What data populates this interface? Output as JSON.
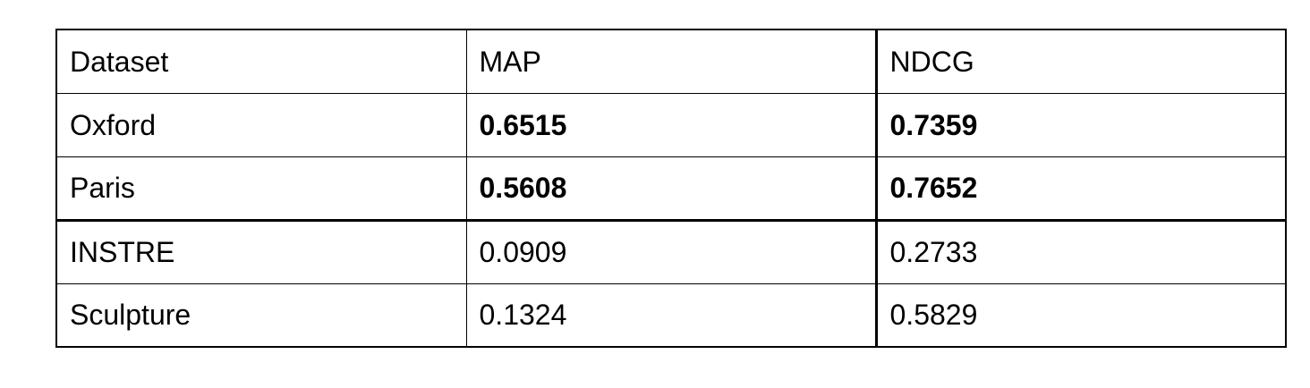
{
  "table": {
    "headers": [
      "Dataset",
      "MAP",
      "NDCG"
    ],
    "rows": [
      {
        "dataset": "Oxford",
        "map": "0.6515",
        "ndcg": "0.7359",
        "bold": true
      },
      {
        "dataset": "Paris",
        "map": "0.5608",
        "ndcg": "0.7652",
        "bold": true
      },
      {
        "dataset": "INSTRE",
        "map": "0.0909",
        "ndcg": "0.2733",
        "bold": false
      },
      {
        "dataset": "Sculpture",
        "map": "0.1324",
        "ndcg": "0.5829",
        "bold": false
      }
    ]
  }
}
